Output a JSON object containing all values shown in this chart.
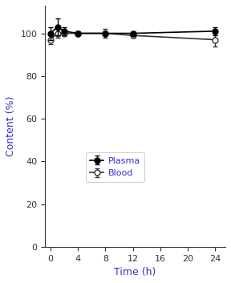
{
  "plasma_x": [
    0,
    1,
    2,
    4,
    8,
    12,
    24
  ],
  "plasma_y": [
    100,
    103,
    101,
    100,
    100,
    100,
    101
  ],
  "plasma_yerr": [
    3,
    4,
    2,
    1,
    1,
    1,
    2
  ],
  "blood_x": [
    0,
    1,
    2,
    4,
    8,
    12,
    24
  ],
  "blood_y": [
    97,
    100,
    100,
    100,
    100,
    99,
    97
  ],
  "blood_yerr": [
    2,
    2,
    1,
    1,
    2,
    1,
    3
  ],
  "xlabel": "Time (h)",
  "ylabel": "Content (%)",
  "xlim": [
    -0.8,
    25.5
  ],
  "ylim": [
    0,
    113
  ],
  "xticks": [
    0,
    4,
    8,
    12,
    16,
    20,
    24
  ],
  "yticks": [
    0,
    20,
    40,
    60,
    80,
    100
  ],
  "legend_labels": [
    "Plasma",
    "Blood"
  ],
  "axis_label_color": "#3333cc",
  "tick_label_color": "#333333",
  "legend_text_color": "#cc3333",
  "spine_color": "#333333",
  "plasma_color": "#000000",
  "blood_color": "#333333",
  "label_fontsize": 9,
  "tick_fontsize": 8,
  "legend_fontsize": 8,
  "linewidth": 1.2,
  "markersize": 5,
  "capsize": 2,
  "elinewidth": 1.0
}
